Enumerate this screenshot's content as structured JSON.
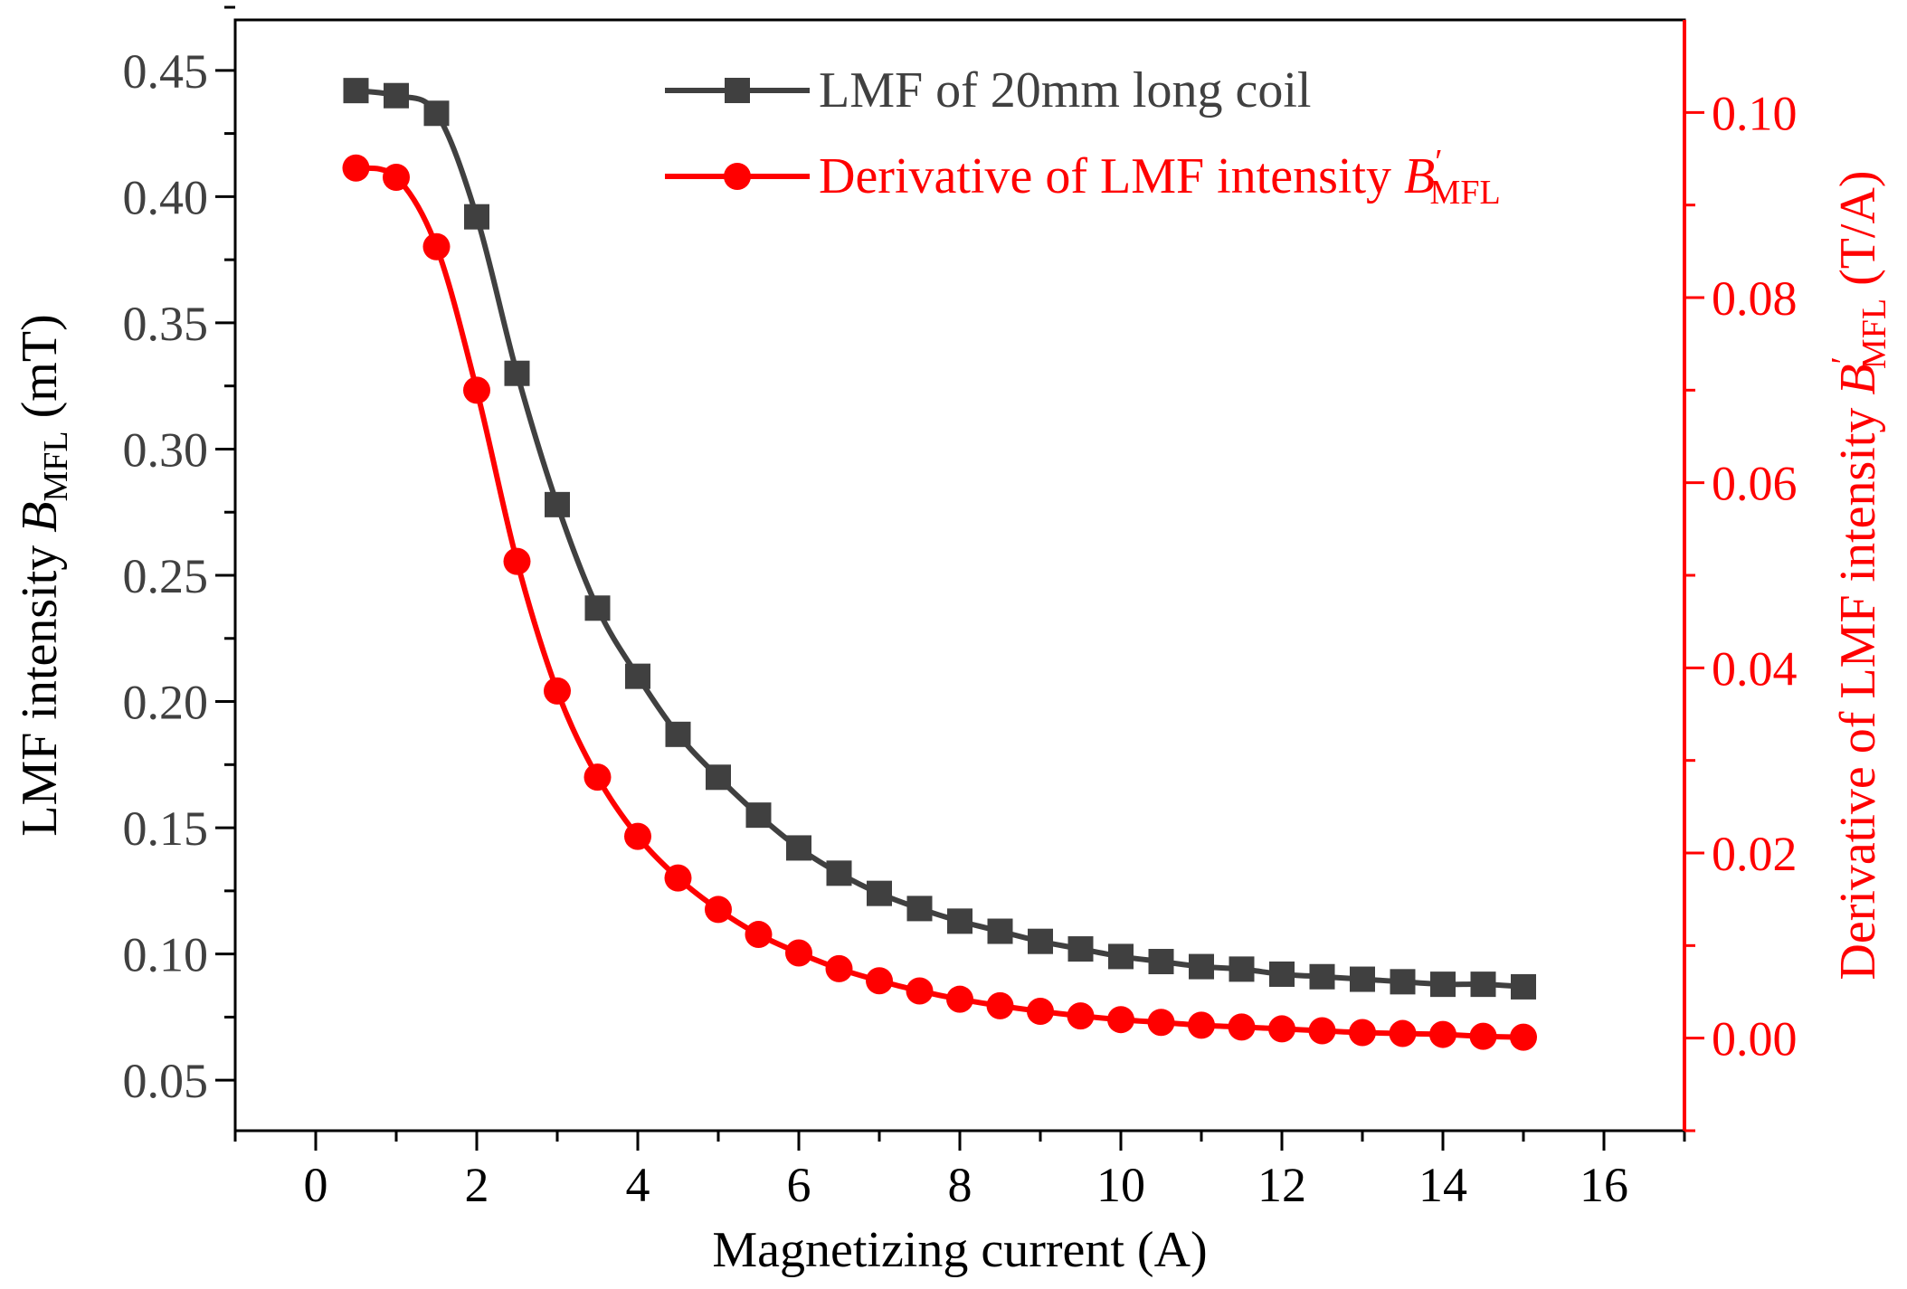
{
  "chart_data": {
    "type": "line",
    "title": "",
    "xlabel": "Magnetizing current (A)",
    "ylabel": {
      "prefix": "LMF intensity ",
      "symbol": "B",
      "subscript": "MFL",
      "suffix": " (mT)"
    },
    "y2label": {
      "prefix": "Derivative of LMF intensity ",
      "symbol": "B",
      "prime": "′",
      "subscript": "MFL",
      "suffix": " (T/A)"
    },
    "xlim": [
      -1,
      17
    ],
    "ylim": [
      0.03,
      0.47
    ],
    "y2lim": [
      -0.01,
      0.11
    ],
    "xticks": [
      "0",
      "2",
      "4",
      "6",
      "8",
      "10",
      "12",
      "14",
      "16"
    ],
    "yticks": [
      "0.05",
      "0.10",
      "0.15",
      "0.20",
      "0.25",
      "0.30",
      "0.35",
      "0.40",
      "0.45"
    ],
    "y2ticks": [
      "0.00",
      "0.02",
      "0.04",
      "0.06",
      "0.08",
      "0.10"
    ],
    "x": [
      0.5,
      1,
      1.5,
      2,
      2.5,
      3,
      3.5,
      4,
      4.5,
      5,
      5.5,
      6,
      6.5,
      7,
      7.5,
      8,
      8.5,
      9,
      9.5,
      10,
      10.5,
      11,
      11.5,
      12,
      12.5,
      13,
      13.5,
      14,
      14.5,
      15
    ],
    "series": [
      {
        "name": "LMF of 20mm long coil",
        "axis": "left",
        "color": "#404040",
        "marker": "square",
        "values": [
          0.442,
          0.44,
          0.433,
          0.392,
          0.33,
          0.278,
          0.237,
          0.21,
          0.187,
          0.17,
          0.155,
          0.142,
          0.132,
          0.124,
          0.118,
          0.113,
          0.109,
          0.105,
          0.102,
          0.099,
          0.097,
          0.095,
          0.094,
          0.092,
          0.091,
          0.09,
          0.089,
          0.088,
          0.088,
          0.087
        ]
      },
      {
        "name": "Derivative of LMF intensity ",
        "name_symbol": "B",
        "name_prime": "′",
        "name_subscript": "MFL",
        "axis": "right",
        "color": "#ff0000",
        "marker": "circle",
        "values": [
          0.094,
          0.093,
          0.0855,
          0.07,
          0.0515,
          0.0375,
          0.0282,
          0.0218,
          0.0173,
          0.0139,
          0.0112,
          0.0092,
          0.0075,
          0.0062,
          0.0051,
          0.0042,
          0.0035,
          0.0029,
          0.0024,
          0.002,
          0.0017,
          0.0014,
          0.0012,
          0.001,
          0.0008,
          0.0006,
          0.0005,
          0.0004,
          0.0002,
          0.0001
        ]
      }
    ],
    "legend": "top-right",
    "grid": false
  }
}
